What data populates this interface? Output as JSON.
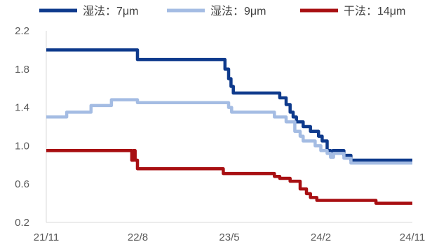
{
  "chart_data": {
    "type": "line",
    "title": "",
    "xlabel": "",
    "ylabel": "",
    "x_ticks": [
      "21/11",
      "22/8",
      "23/5",
      "24/2",
      "24/11"
    ],
    "y_ticks": [
      "0.2",
      "0.6",
      "1.0",
      "1.4",
      "1.8",
      "2.2"
    ],
    "ylim": [
      0.2,
      2.2
    ],
    "xlim": [
      "2021-11",
      "2024-11"
    ],
    "grid": false,
    "legend_position": "top",
    "colors": [
      "#0E3A8C",
      "#A4BCE3",
      "#A80F12"
    ],
    "series": [
      {
        "name": "湿法：7μm",
        "color": "#0E3A8C",
        "points": [
          [
            "2021-11-01",
            2.0
          ],
          [
            "2022-08-01",
            2.0
          ],
          [
            "2022-08-01",
            1.9
          ],
          [
            "2023-04-20",
            1.9
          ],
          [
            "2023-04-20",
            1.8
          ],
          [
            "2023-05-01",
            1.8
          ],
          [
            "2023-05-01",
            1.7
          ],
          [
            "2023-05-08",
            1.7
          ],
          [
            "2023-05-08",
            1.62
          ],
          [
            "2023-05-15",
            1.62
          ],
          [
            "2023-05-15",
            1.55
          ],
          [
            "2023-10-01",
            1.55
          ],
          [
            "2023-10-01",
            1.5
          ],
          [
            "2023-10-20",
            1.5
          ],
          [
            "2023-10-20",
            1.43
          ],
          [
            "2023-11-01",
            1.43
          ],
          [
            "2023-11-01",
            1.35
          ],
          [
            "2023-11-10",
            1.35
          ],
          [
            "2023-11-10",
            1.3
          ],
          [
            "2023-11-20",
            1.3
          ],
          [
            "2023-11-20",
            1.25
          ],
          [
            "2023-12-10",
            1.25
          ],
          [
            "2023-12-10",
            1.2
          ],
          [
            "2024-01-01",
            1.2
          ],
          [
            "2024-01-01",
            1.15
          ],
          [
            "2024-01-25",
            1.15
          ],
          [
            "2024-01-25",
            1.1
          ],
          [
            "2024-02-05",
            1.1
          ],
          [
            "2024-02-05",
            1.05
          ],
          [
            "2024-02-20",
            1.05
          ],
          [
            "2024-02-20",
            0.95
          ],
          [
            "2024-03-01",
            0.95
          ],
          [
            "2024-03-01",
            0.92
          ],
          [
            "2024-03-08",
            0.92
          ],
          [
            "2024-03-08",
            0.95
          ],
          [
            "2024-04-10",
            0.95
          ],
          [
            "2024-04-10",
            0.9
          ],
          [
            "2024-05-01",
            0.9
          ],
          [
            "2024-05-01",
            0.85
          ],
          [
            "2024-11-01",
            0.85
          ]
        ]
      },
      {
        "name": "湿法：9μm",
        "color": "#A4BCE3",
        "points": [
          [
            "2021-11-01",
            1.3
          ],
          [
            "2022-01-01",
            1.3
          ],
          [
            "2022-01-01",
            1.35
          ],
          [
            "2022-03-15",
            1.35
          ],
          [
            "2022-03-15",
            1.42
          ],
          [
            "2022-05-15",
            1.42
          ],
          [
            "2022-05-15",
            1.48
          ],
          [
            "2022-08-01",
            1.48
          ],
          [
            "2022-08-01",
            1.45
          ],
          [
            "2023-05-01",
            1.45
          ],
          [
            "2023-05-01",
            1.4
          ],
          [
            "2023-05-10",
            1.4
          ],
          [
            "2023-05-10",
            1.35
          ],
          [
            "2023-09-15",
            1.35
          ],
          [
            "2023-09-15",
            1.3
          ],
          [
            "2023-10-20",
            1.3
          ],
          [
            "2023-10-20",
            1.25
          ],
          [
            "2023-11-15",
            1.25
          ],
          [
            "2023-11-15",
            1.15
          ],
          [
            "2023-12-01",
            1.15
          ],
          [
            "2023-12-01",
            1.1
          ],
          [
            "2023-12-10",
            1.1
          ],
          [
            "2023-12-10",
            1.05
          ],
          [
            "2024-01-15",
            1.05
          ],
          [
            "2024-01-15",
            1.0
          ],
          [
            "2024-02-01",
            1.0
          ],
          [
            "2024-02-01",
            0.95
          ],
          [
            "2024-02-20",
            0.95
          ],
          [
            "2024-02-20",
            0.92
          ],
          [
            "2024-03-01",
            0.92
          ],
          [
            "2024-03-01",
            0.88
          ],
          [
            "2024-03-10",
            0.88
          ],
          [
            "2024-03-10",
            0.92
          ],
          [
            "2024-04-10",
            0.92
          ],
          [
            "2024-04-10",
            0.87
          ],
          [
            "2024-05-01",
            0.87
          ],
          [
            "2024-05-01",
            0.82
          ],
          [
            "2024-11-01",
            0.82
          ]
        ]
      },
      {
        "name": "干法：14μm",
        "color": "#A80F12",
        "points": [
          [
            "2021-11-01",
            0.95
          ],
          [
            "2022-07-15",
            0.95
          ],
          [
            "2022-07-15",
            0.85
          ],
          [
            "2022-07-20",
            0.85
          ],
          [
            "2022-07-20",
            0.95
          ],
          [
            "2022-07-25",
            0.95
          ],
          [
            "2022-07-25",
            0.85
          ],
          [
            "2022-08-01",
            0.85
          ],
          [
            "2022-08-01",
            0.76
          ],
          [
            "2023-04-15",
            0.76
          ],
          [
            "2023-04-15",
            0.71
          ],
          [
            "2023-09-15",
            0.71
          ],
          [
            "2023-09-15",
            0.68
          ],
          [
            "2023-10-01",
            0.68
          ],
          [
            "2023-10-01",
            0.66
          ],
          [
            "2023-11-01",
            0.66
          ],
          [
            "2023-11-01",
            0.63
          ],
          [
            "2023-12-01",
            0.63
          ],
          [
            "2023-12-01",
            0.55
          ],
          [
            "2023-12-20",
            0.55
          ],
          [
            "2023-12-20",
            0.5
          ],
          [
            "2024-01-01",
            0.5
          ],
          [
            "2024-01-01",
            0.46
          ],
          [
            "2024-01-20",
            0.46
          ],
          [
            "2024-01-20",
            0.43
          ],
          [
            "2024-07-15",
            0.43
          ],
          [
            "2024-07-15",
            0.4
          ],
          [
            "2024-11-01",
            0.4
          ]
        ]
      }
    ]
  }
}
